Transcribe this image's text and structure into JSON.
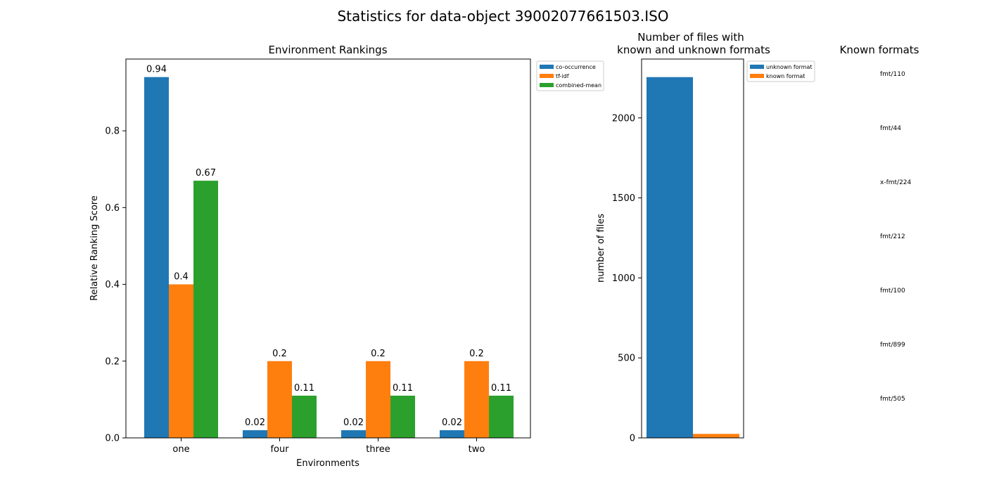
{
  "suptitle": "Statistics for data-object 39002077661503.ISO",
  "colors": {
    "blue": "#1f77b4",
    "orange": "#ff7f0e",
    "green": "#2ca02c"
  },
  "chart_data": [
    {
      "type": "bar",
      "title": "Environment Rankings",
      "xlabel": "Environments",
      "ylabel": "Relative Ranking Score",
      "categories": [
        "one",
        "four",
        "three",
        "two"
      ],
      "series": [
        {
          "name": "co-occurrence",
          "values": [
            0.94,
            0.02,
            0.02,
            0.02
          ],
          "labels": [
            "0.94",
            "0.02",
            "0.02",
            "0.02"
          ],
          "color": "#1f77b4"
        },
        {
          "name": "tf-idf",
          "values": [
            0.4,
            0.2,
            0.2,
            0.2
          ],
          "labels": [
            "0.4",
            "0.2",
            "0.2",
            "0.2"
          ],
          "color": "#ff7f0e"
        },
        {
          "name": "combined-mean",
          "values": [
            0.67,
            0.11,
            0.11,
            0.11
          ],
          "labels": [
            "0.67",
            "0.11",
            "0.11",
            "0.11"
          ],
          "color": "#2ca02c"
        }
      ],
      "ylim": [
        0,
        0.987
      ],
      "yticks": [
        0.0,
        0.2,
        0.4,
        0.6,
        0.8
      ],
      "ytick_labels": [
        "0.0",
        "0.2",
        "0.4",
        "0.6",
        "0.8"
      ],
      "legend": "outside-top-right",
      "grid": false
    },
    {
      "type": "bar",
      "title_lines": [
        "Number of files with",
        "known and unknown formats"
      ],
      "ylabel": "number of files",
      "series": [
        {
          "name": "unknown format",
          "value": 2255,
          "color": "#1f77b4"
        },
        {
          "name": "known format",
          "value": 25,
          "color": "#ff7f0e"
        }
      ],
      "ylim": [
        0,
        2368
      ],
      "yticks": [
        0,
        500,
        1000,
        1500,
        2000
      ],
      "ytick_labels": [
        "0",
        "500",
        "1000",
        "1500",
        "2000"
      ],
      "legend": "outside-top-right",
      "grid": false
    },
    {
      "type": "table",
      "title": "Known formats",
      "rows": [
        "fmt/110",
        "fmt/44",
        "x-fmt/224",
        "fmt/212",
        "fmt/100",
        "fmt/899",
        "fmt/505"
      ]
    }
  ]
}
